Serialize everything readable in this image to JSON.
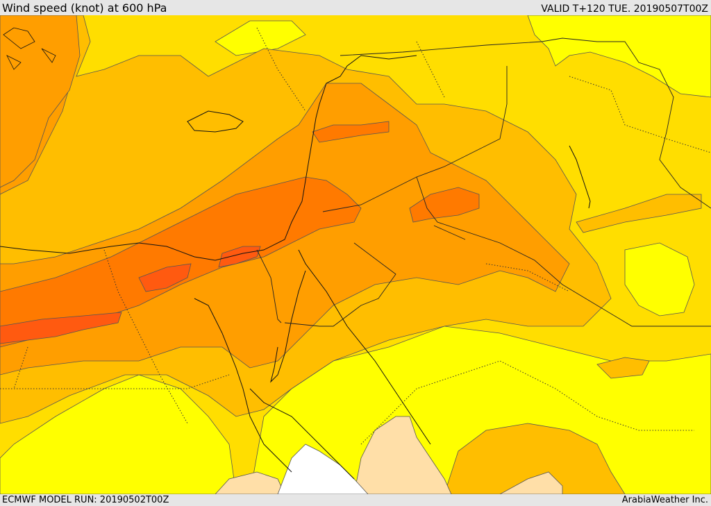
{
  "header": {
    "title": "Wind speed (knot) at 600 hPa",
    "valid": "VALID T+120 TUE. 20190507T00Z"
  },
  "footer": {
    "model_run": "ECMWF MODEL RUN: 20190502T00Z",
    "credit": "ArabiaWeather Inc."
  },
  "colors": {
    "band_lowest": "#ffffff",
    "band_low": "#ffdfa8",
    "band_1": "#ffff00",
    "band_2": "#ffde00",
    "band_3": "#ffbe00",
    "band_4": "#ff9e00",
    "band_5": "#ff7a00",
    "band_6": "#ff5a10",
    "contour": "#555555",
    "border": "#222222"
  }
}
